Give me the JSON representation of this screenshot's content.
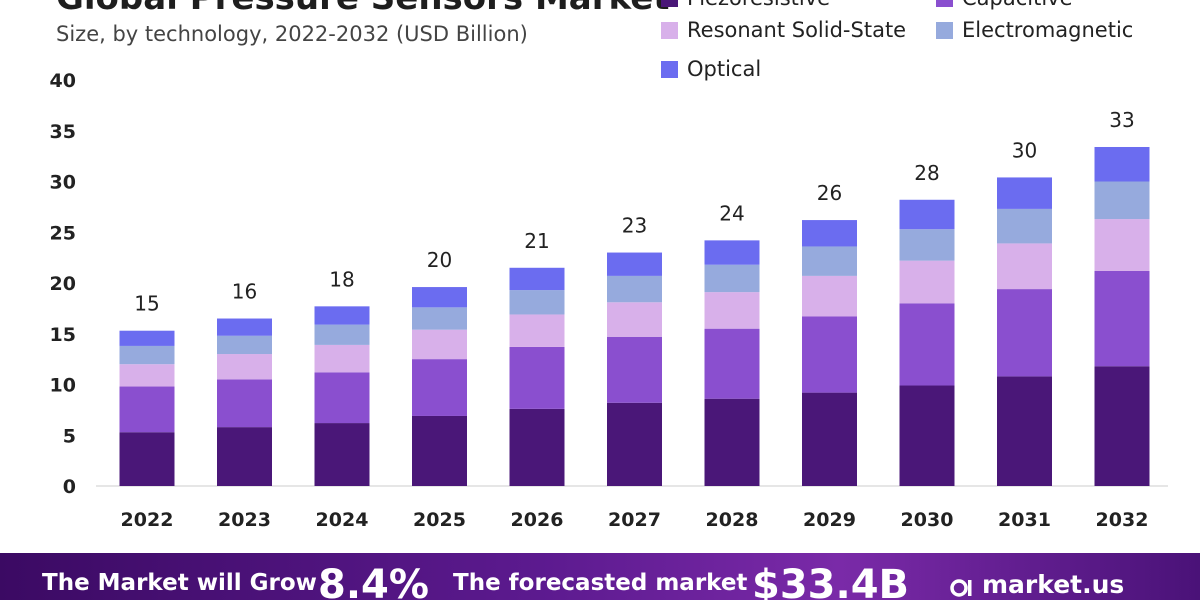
{
  "title": "Global Pressure Sensors Market",
  "subtitle": "Size, by technology, 2022-2032 (USD Billion)",
  "legend": [
    {
      "label": "Piezoresistive",
      "color": "#4a1778"
    },
    {
      "label": "Capacitive",
      "color": "#8a4fcf"
    },
    {
      "label": "Resonant Solid-State",
      "color": "#d8b0ea"
    },
    {
      "label": "Electromagnetic",
      "color": "#96aadd"
    },
    {
      "label": "Optical",
      "color": "#6b6cf0"
    }
  ],
  "chart_data": {
    "type": "bar",
    "stacked": true,
    "title": "Global Pressure Sensors Market",
    "subtitle": "Size, by technology, 2022-2032 (USD Billion)",
    "categories": [
      "2022",
      "2023",
      "2024",
      "2025",
      "2026",
      "2027",
      "2028",
      "2029",
      "2030",
      "2031",
      "2032"
    ],
    "series": [
      {
        "name": "Piezoresistive",
        "color": "#4a1778",
        "values": [
          5.3,
          5.8,
          6.2,
          6.9,
          7.6,
          8.2,
          8.6,
          9.2,
          9.9,
          10.8,
          11.8
        ]
      },
      {
        "name": "Capacitive",
        "color": "#8a4fcf",
        "values": [
          4.5,
          4.7,
          5.0,
          5.6,
          6.1,
          6.5,
          6.9,
          7.5,
          8.1,
          8.6,
          9.4
        ]
      },
      {
        "name": "Resonant Solid-State",
        "color": "#d8b0ea",
        "values": [
          2.2,
          2.5,
          2.7,
          2.9,
          3.2,
          3.4,
          3.6,
          4.0,
          4.2,
          4.5,
          5.1
        ]
      },
      {
        "name": "Electromagnetic",
        "color": "#96aadd",
        "values": [
          1.8,
          1.8,
          2.0,
          2.2,
          2.4,
          2.6,
          2.7,
          2.9,
          3.1,
          3.4,
          3.7
        ]
      },
      {
        "name": "Optical",
        "color": "#6b6cf0",
        "values": [
          1.5,
          1.7,
          1.8,
          2.0,
          2.2,
          2.3,
          2.4,
          2.6,
          2.9,
          3.1,
          3.4
        ]
      }
    ],
    "totals": [
      "15",
      "16",
      "18",
      "20",
      "21",
      "23",
      "24",
      "26",
      "28",
      "30",
      "33"
    ],
    "ylim": [
      0,
      40
    ],
    "yticks": [
      0,
      5,
      10,
      15,
      20,
      25,
      30,
      35,
      40
    ],
    "xlabel": "",
    "ylabel": "",
    "grid": false,
    "legend_position": "top-right"
  },
  "banner": {
    "grow_text": "The Market will Grow",
    "cagr": "8.4%",
    "forecast_text": "The forecasted market",
    "forecast_value": "$33.4B",
    "brand": "market.us"
  }
}
